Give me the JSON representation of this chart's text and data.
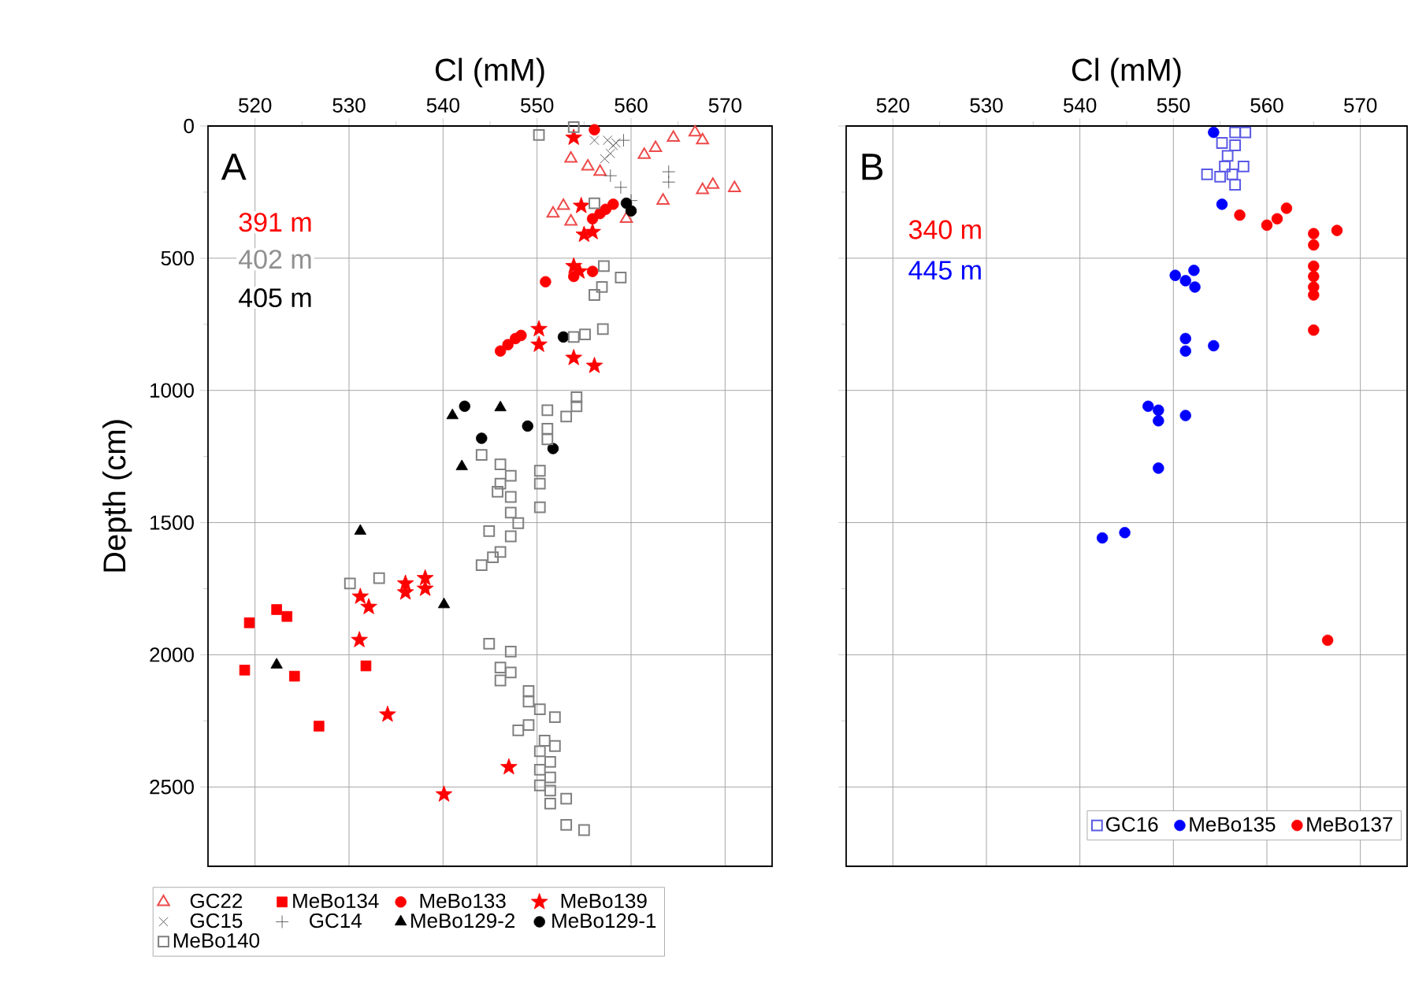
{
  "chart_data": [
    {
      "type": "scatter",
      "xlabel": "Cl (mM)",
      "ylabel": "Depth (cm)",
      "xlim": [
        515,
        575
      ],
      "ylim": [
        2800,
        0
      ],
      "xticks": [
        520,
        530,
        540,
        550,
        560,
        570
      ],
      "yticks": [
        0,
        500,
        1000,
        1500,
        2000,
        2500
      ],
      "grid": true,
      "legend": "bottom",
      "annotations": [
        "A",
        "391 m",
        "402 m",
        "405 m"
      ],
      "series": [
        {
          "name": "GC22",
          "color": "#ee4a4a",
          "marker": "triangle",
          "x": [
            553.6,
            555.4,
            556.7,
            561.4,
            562.6,
            564.5,
            566.8,
            567.6,
            563.4,
            567.6,
            568.7,
            571.0,
            551.7,
            552.8,
            553.6,
            559.5
          ],
          "values": [
            123,
            153,
            173,
            109,
            83,
            44,
            24,
            54,
            282,
            242,
            222,
            235,
            331,
            302,
            361,
            351
          ]
        },
        {
          "name": "MeBo134",
          "color": "#ff0000",
          "marker": "square",
          "x": [
            519.4,
            522.3,
            523.4,
            518.9,
            524.2,
            531.8,
            526.8
          ],
          "values": [
            1879,
            1829,
            1855,
            2058,
            2081,
            2042,
            2270
          ]
        },
        {
          "name": "MeBo133",
          "color": "#ff0000",
          "marker": "circle",
          "x": [
            556.1,
            555.9,
            556.7,
            558.1,
            557.3,
            550.9,
            553.9,
            555.9,
            546.1,
            546.9,
            547.7,
            548.3
          ],
          "values": [
            14,
            351,
            331,
            296,
            315,
            589,
            569,
            550,
            851,
            827,
            804,
            792
          ]
        },
        {
          "name": "MeBo139",
          "color": "#ff0000",
          "marker": "star",
          "x": [
            553.9,
            554.7,
            555.0,
            555.9,
            553.9,
            554.5,
            550.2,
            550.2,
            553.9,
            556.1,
            531.2,
            532.1,
            536.0,
            536.0,
            538.1,
            538.1,
            531.1,
            534.1,
            547.0,
            540.1
          ],
          "values": [
            44,
            302,
            411,
            401,
            530,
            550,
            768,
            827,
            877,
            907,
            1780,
            1819,
            1730,
            1764,
            1710,
            1750,
            1944,
            2226,
            2425,
            2528
          ]
        },
        {
          "name": "GC15",
          "color": "#404040",
          "marker": "cross",
          "x": [
            557.5,
            558.1,
            557.8,
            558.4,
            557.2,
            556.1
          ],
          "values": [
            54,
            74,
            104,
            64,
            124,
            54
          ]
        },
        {
          "name": "GC14",
          "color": "#404040",
          "marker": "plus",
          "x": [
            559.2,
            564.0,
            564.0,
            558.9,
            557.8,
            560.0
          ],
          "values": [
            54,
            173,
            212,
            232,
            188,
            282
          ]
        },
        {
          "name": "MeBo129-2",
          "color": "#000000",
          "marker": "triangle",
          "x": [
            541.0,
            546.1,
            542.0,
            531.2,
            540.1,
            522.3
          ],
          "values": [
            1095,
            1065,
            1288,
            1532,
            1810,
            2038
          ]
        },
        {
          "name": "MeBo129-1",
          "color": "#000000",
          "marker": "circle",
          "x": [
            560.0,
            559.5,
            552.8,
            542.3,
            544.1,
            549.0,
            551.7
          ],
          "values": [
            321,
            292,
            798,
            1060,
            1181,
            1135,
            1220
          ]
        },
        {
          "name": "MeBo140",
          "color": "#808080",
          "marker": "square",
          "x": [
            550.2,
            553.9,
            556.1,
            557.1,
            558.9,
            556.9,
            556.1,
            553.9,
            555.1,
            557.0,
            554.2,
            554.2,
            553.1,
            551.1,
            551.1,
            551.1,
            544.1,
            546.1,
            547.2,
            546.1,
            545.8,
            547.2,
            550.3,
            550.3,
            550.3,
            547.2,
            548.0,
            544.9,
            547.2,
            546.1,
            545.3,
            544.1,
            530.1,
            533.2,
            544.9,
            547.2,
            546.1,
            546.1,
            547.2,
            549.1,
            549.1,
            550.3,
            551.9,
            548.0,
            549.1,
            550.8,
            551.9,
            550.3,
            551.4,
            550.3,
            551.4,
            550.3,
            551.4,
            551.4,
            553.1,
            553.1,
            555.0
          ],
          "values": [
            34,
            4,
            292,
            530,
            573,
            609,
            639,
            798,
            788,
            768,
            1026,
            1060,
            1099,
            1075,
            1145,
            1185,
            1244,
            1280,
            1323,
            1353,
            1383,
            1403,
            1304,
            1353,
            1442,
            1462,
            1502,
            1532,
            1552,
            1611,
            1631,
            1661,
            1730,
            1710,
            1958,
            1988,
            2048,
            2097,
            2067,
            2137,
            2177,
            2206,
            2236,
            2286,
            2266,
            2325,
            2345,
            2365,
            2405,
            2435,
            2464,
            2494,
            2514,
            2563,
            2544,
            2643,
            2663
          ]
        }
      ]
    },
    {
      "type": "scatter",
      "xlabel": "Cl (mM)",
      "xlim": [
        515,
        575
      ],
      "ylim": [
        2800,
        0
      ],
      "xticks": [
        520,
        530,
        540,
        550,
        560,
        570
      ],
      "yticks": [
        0,
        500,
        1000,
        1500,
        2000,
        2500
      ],
      "grid": true,
      "legend": "bottom",
      "tick_labels": "x",
      "annotations": [
        "B",
        "340 m",
        "445 m"
      ],
      "series": [
        {
          "name": "GC16",
          "color": "#5a5ae6",
          "marker": "square",
          "x": [
            556.6,
            557.7,
            555.2,
            556.6,
            555.8,
            557.5,
            555.5,
            553.6,
            555.0,
            556.6,
            556.3
          ],
          "values": [
            24,
            24,
            64,
            73,
            113,
            153,
            153,
            183,
            192,
            222,
            183
          ]
        },
        {
          "name": "MeBo135",
          "color": "#0000ff",
          "marker": "circle",
          "x": [
            554.3,
            555.2,
            550.2,
            552.2,
            551.3,
            552.3,
            551.3,
            551.3,
            554.3,
            547.3,
            548.4,
            548.4,
            551.3,
            548.4,
            542.4,
            544.8
          ],
          "values": [
            24,
            296,
            565,
            546,
            585,
            609,
            804,
            851,
            831,
            1060,
            1075,
            1115,
            1095,
            1294,
            1558,
            1538
          ]
        },
        {
          "name": "MeBo137",
          "color": "#ff0000",
          "marker": "circle",
          "x": [
            557.1,
            560.0,
            561.1,
            562.1,
            565.0,
            565.0,
            565.0,
            565.0,
            565.0,
            565.0,
            565.0,
            567.5,
            566.5
          ],
          "values": [
            337,
            375,
            351,
            311,
            407,
            450,
            530,
            569,
            609,
            639,
            772,
            395,
            1945
          ]
        }
      ]
    }
  ]
}
